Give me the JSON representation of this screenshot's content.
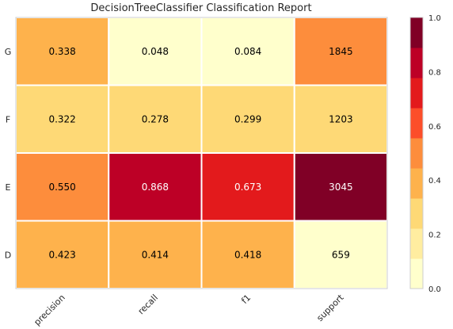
{
  "chart_data": {
    "type": "heatmap",
    "title": "DecisionTreeClassifier Classification Report",
    "rows": [
      "G",
      "F",
      "E",
      "D"
    ],
    "columns": [
      "precision",
      "recall",
      "f1",
      "support"
    ],
    "values": [
      [
        0.338,
        0.048,
        0.084,
        1845
      ],
      [
        0.322,
        0.278,
        0.299,
        1203
      ],
      [
        0.55,
        0.868,
        0.673,
        3045
      ],
      [
        0.423,
        0.414,
        0.418,
        659
      ]
    ],
    "cell_labels": [
      [
        "0.338",
        "0.048",
        "0.084",
        "1845"
      ],
      [
        "0.322",
        "0.278",
        "0.299",
        "1203"
      ],
      [
        "0.550",
        "0.868",
        "0.673",
        "3045"
      ],
      [
        "0.423",
        "0.414",
        "0.418",
        "659"
      ]
    ],
    "colormap": "YlOrRd",
    "colorbar": {
      "range": [
        0.0,
        1.0
      ],
      "ticks": [
        "0.0",
        "0.2",
        "0.4",
        "0.6",
        "0.8",
        "1.0"
      ],
      "bins": 9,
      "colors": [
        "#ffffcc",
        "#ffeda0",
        "#fed976",
        "#feb24c",
        "#fd8d3c",
        "#fc4e2a",
        "#e31a1c",
        "#bd0026",
        "#800026"
      ]
    },
    "support_color_scale": {
      "min": 659,
      "max": 3045
    },
    "grid": false,
    "colors": {
      "light_text": "#ffffff",
      "dark_text": "#000000",
      "cell_border": "#ffffff",
      "axes_border": "#cccccc"
    }
  }
}
